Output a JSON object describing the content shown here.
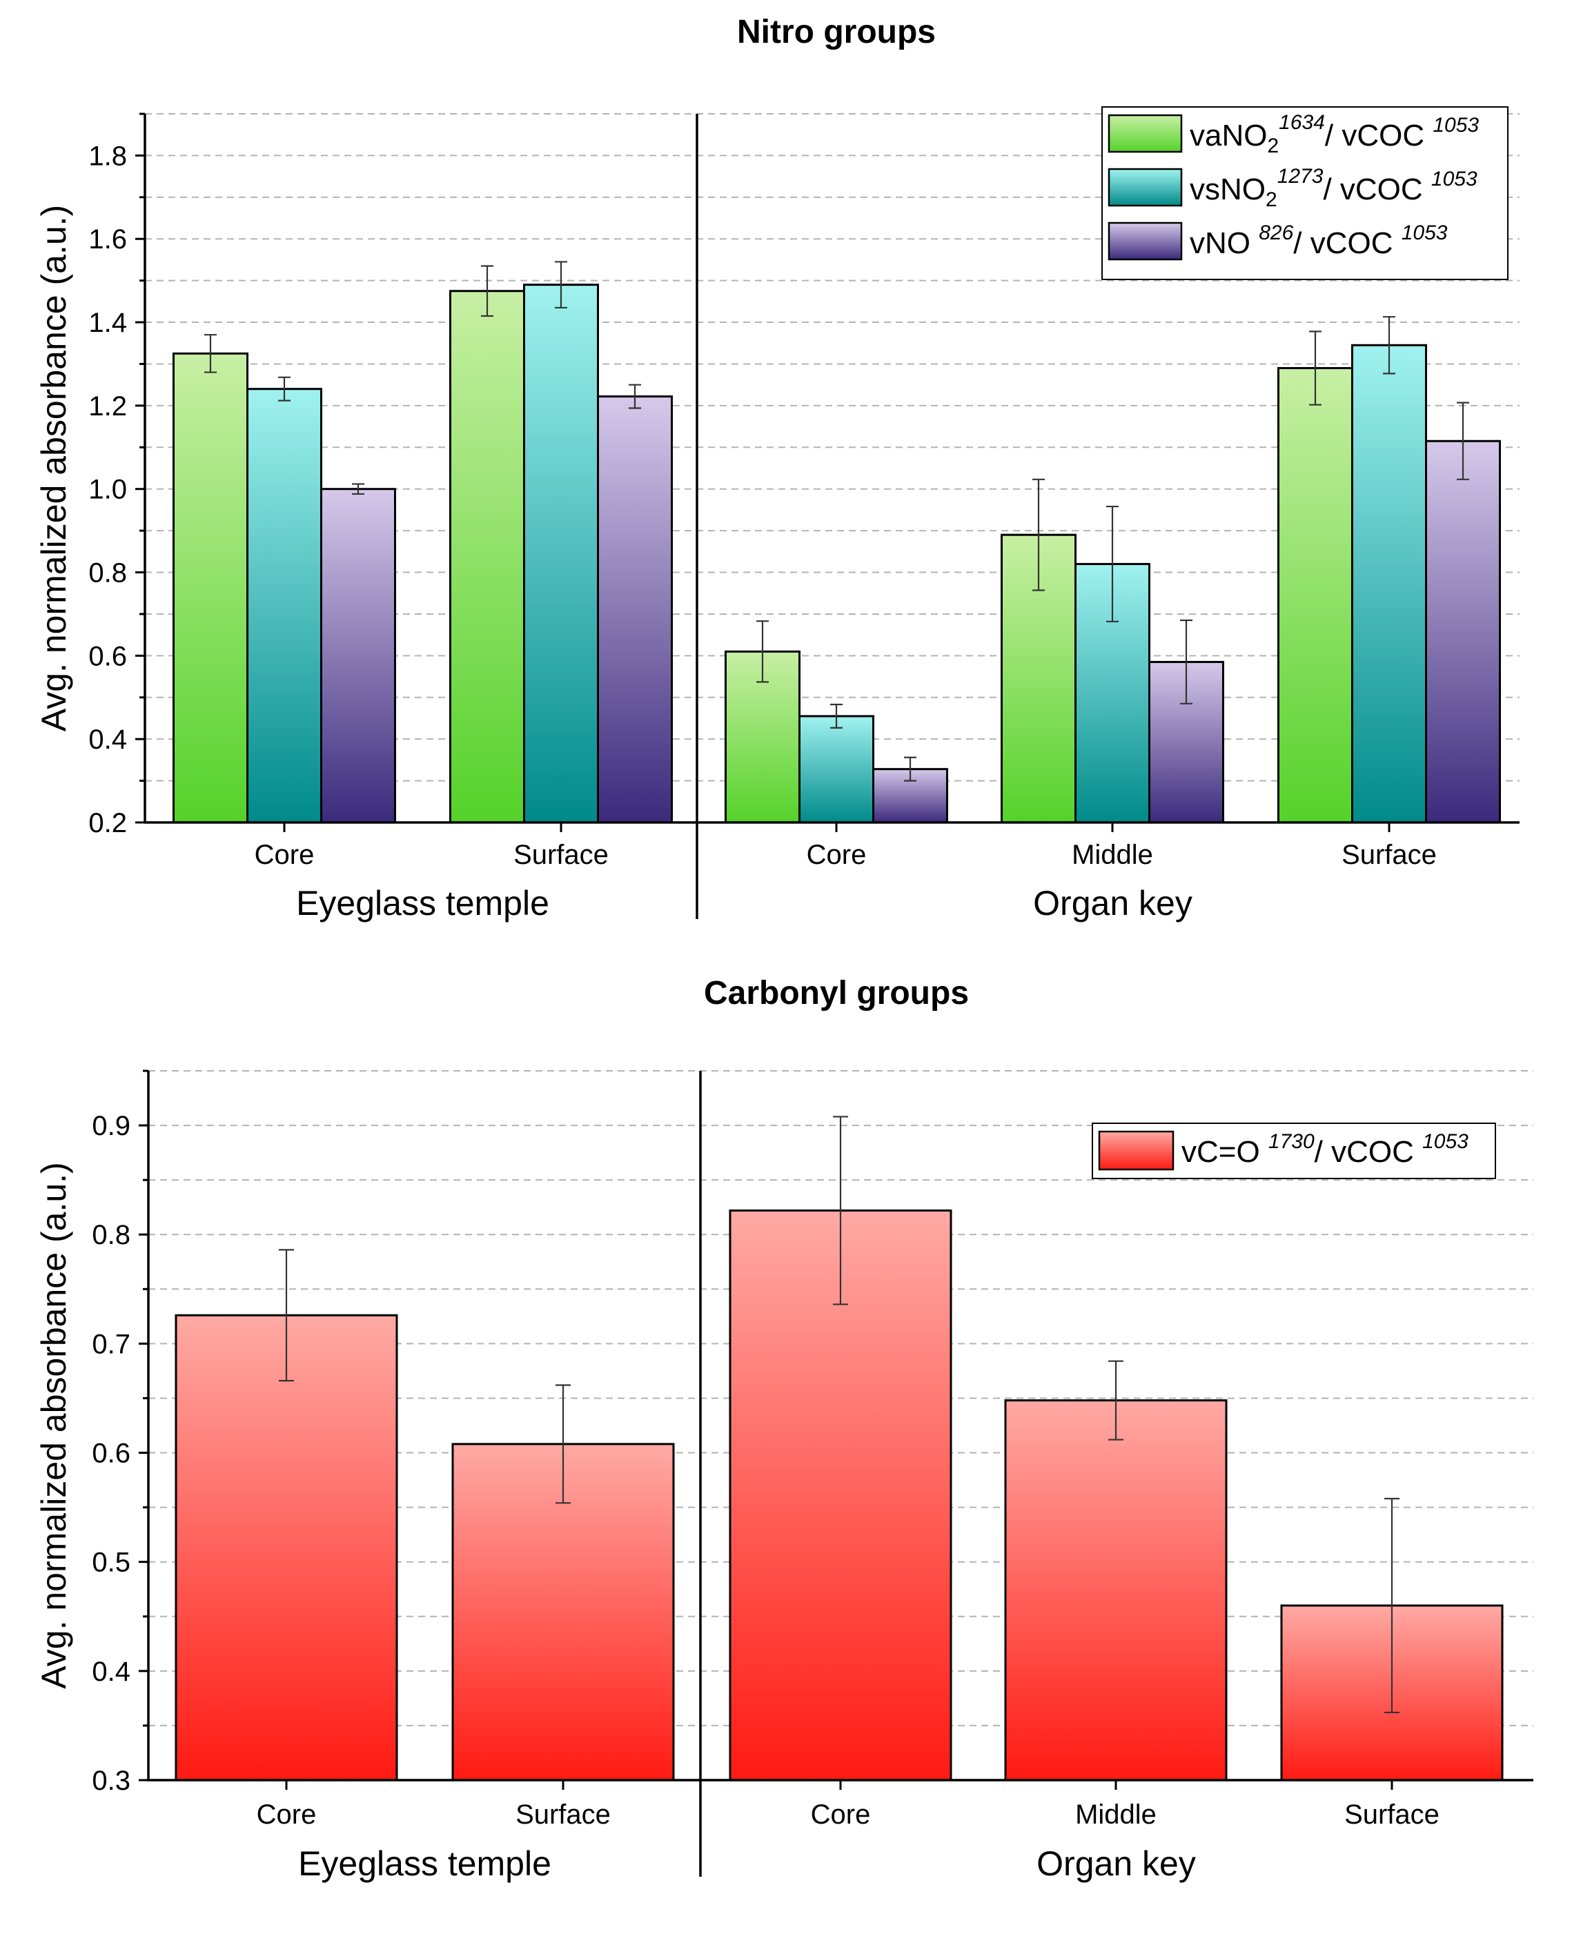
{
  "chart_data": [
    {
      "type": "bar",
      "title": "Nitro groups",
      "ylabel": "Avg. normalized absorbance (a.u.)",
      "ylim": [
        0.2,
        1.9
      ],
      "yticks": [
        0.2,
        0.4,
        0.6,
        0.8,
        1.0,
        1.2,
        1.4,
        1.6,
        1.8
      ],
      "ytick_labels": [
        "0.2",
        "0.4",
        "0.6",
        "0.8",
        "1.0",
        "1.2",
        "1.4",
        "1.6",
        "1.8"
      ],
      "grid": true,
      "legend_position": "top-right",
      "groups": [
        {
          "label": "Eyeglass temple",
          "categories": [
            "Core",
            "Surface"
          ]
        },
        {
          "label": "Organ key",
          "categories": [
            "Core",
            "Middle",
            "Surface"
          ]
        }
      ],
      "categories": [
        "Core",
        "Surface",
        "Core",
        "Middle",
        "Surface"
      ],
      "series": [
        {
          "name": "vaNO2 1634/ vCOC 1053",
          "legend_parts": {
            "base": "vaNO",
            "sub": "2",
            "sup": "1634",
            "rest": "/ vCOC ",
            "sup2": "1053"
          },
          "values": [
            1.325,
            1.475,
            0.61,
            0.89,
            1.29
          ],
          "errors": [
            0.045,
            0.06,
            0.073,
            0.133,
            0.088
          ],
          "color_top": "#c8efa4",
          "color_bottom": "#55d22a"
        },
        {
          "name": "vsNO2 1273/ vCOC 1053",
          "legend_parts": {
            "base": "vsNO",
            "sub": "2",
            "sup": "1273",
            "rest": "/ vCOC ",
            "sup2": "1053"
          },
          "values": [
            1.24,
            1.49,
            0.455,
            0.82,
            1.345
          ],
          "errors": [
            0.028,
            0.055,
            0.028,
            0.138,
            0.068
          ],
          "color_top": "#a0f2ef",
          "color_bottom": "#008a8a"
        },
        {
          "name": "vNO 826/ vCOC 1053",
          "legend_parts": {
            "base": "vNO ",
            "sub": "",
            "sup": "826",
            "rest": "/ vCOC ",
            "sup2": "1053"
          },
          "values": [
            1.0,
            1.222,
            0.328,
            0.585,
            1.115
          ],
          "errors": [
            0.012,
            0.028,
            0.028,
            0.1,
            0.092
          ],
          "color_top": "#d6c9ea",
          "color_bottom": "#3b2a7c"
        }
      ]
    },
    {
      "type": "bar",
      "title": "Carbonyl groups",
      "ylabel": "Avg. normalized absorbance (a.u.)",
      "ylim": [
        0.3,
        0.95
      ],
      "yticks": [
        0.3,
        0.4,
        0.5,
        0.6,
        0.7,
        0.8,
        0.9
      ],
      "ytick_labels": [
        "0.3",
        "0.4",
        "0.5",
        "0.6",
        "0.7",
        "0.8",
        "0.9"
      ],
      "grid": true,
      "legend_position": "top-right",
      "groups": [
        {
          "label": "Eyeglass temple",
          "categories": [
            "Core",
            "Surface"
          ]
        },
        {
          "label": "Organ key",
          "categories": [
            "Core",
            "Middle",
            "Surface"
          ]
        }
      ],
      "categories": [
        "Core",
        "Surface",
        "Core",
        "Middle",
        "Surface"
      ],
      "series": [
        {
          "name": "vC=O 1730/ vCOC 1053",
          "legend_parts": {
            "base": "vC=O ",
            "sub": "",
            "sup": "1730",
            "rest": "/ vCOC ",
            "sup2": "1053"
          },
          "values": [
            0.726,
            0.608,
            0.822,
            0.648,
            0.46
          ],
          "errors": [
            0.06,
            0.054,
            0.086,
            0.036,
            0.098
          ],
          "color_top": "#ffaaa5",
          "color_bottom": "#ff1a12"
        }
      ]
    }
  ]
}
